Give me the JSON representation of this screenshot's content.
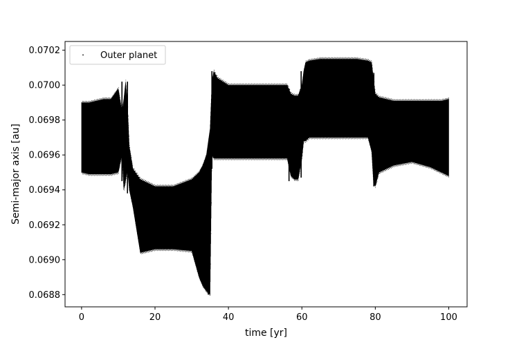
{
  "chart_data": {
    "type": "scatter",
    "title": "",
    "xlabel": "time [yr]",
    "ylabel": "Semi-major axis [au]",
    "xlim": [
      -4.5,
      105
    ],
    "ylim": [
      0.06873,
      0.07025
    ],
    "xticks": [
      0,
      20,
      40,
      60,
      80,
      100
    ],
    "xtick_labels": [
      "0",
      "20",
      "40",
      "60",
      "80",
      "100"
    ],
    "yticks": [
      0.0688,
      0.069,
      0.0692,
      0.0694,
      0.0696,
      0.0698,
      0.07,
      0.0702
    ],
    "ytick_labels": [
      "0.0688",
      "0.0690",
      "0.0692",
      "0.0694",
      "0.0696",
      "0.0698",
      "0.0700",
      "0.0702"
    ],
    "grid": false,
    "legend": {
      "position": "upper-left",
      "entries": [
        "Outer planet"
      ]
    },
    "series": [
      {
        "name": "Outer planet",
        "color": "#000000",
        "marker": "point",
        "envelope": {
          "t": [
            0,
            2,
            4,
            6,
            8,
            10,
            11,
            11.5,
            12,
            12.5,
            13,
            14,
            16,
            20,
            25,
            30,
            32,
            33,
            34,
            35,
            35.5,
            36,
            37,
            40,
            45,
            50,
            55,
            56,
            57,
            58,
            59,
            60,
            60.5,
            61,
            62,
            65,
            70,
            75,
            78,
            79,
            79.5,
            80,
            81,
            83,
            85,
            90,
            95,
            98,
            100
          ],
          "min": [
            0.0695,
            0.06949,
            0.06949,
            0.06949,
            0.06949,
            0.0695,
            0.0696,
            0.0694,
            0.06945,
            0.06952,
            0.0694,
            0.0693,
            0.06904,
            0.06906,
            0.06906,
            0.06905,
            0.0689,
            0.06885,
            0.06882,
            0.0688,
            0.0696,
            0.06958,
            0.06958,
            0.06958,
            0.06958,
            0.06958,
            0.06958,
            0.06958,
            0.06948,
            0.06946,
            0.06946,
            0.06958,
            0.06968,
            0.06968,
            0.0697,
            0.0697,
            0.0697,
            0.0697,
            0.0697,
            0.06962,
            0.06944,
            0.06942,
            0.0695,
            0.06952,
            0.06954,
            0.06956,
            0.06953,
            0.0695,
            0.06948
          ],
          "max": [
            0.0699,
            0.0699,
            0.06991,
            0.06992,
            0.06992,
            0.06998,
            0.06985,
            0.06992,
            0.07002,
            0.0699,
            0.06965,
            0.06952,
            0.06946,
            0.06942,
            0.06942,
            0.06946,
            0.0695,
            0.06954,
            0.0696,
            0.06975,
            0.07002,
            0.07008,
            0.07004,
            0.07,
            0.07,
            0.07,
            0.07,
            0.07,
            0.06995,
            0.06994,
            0.06994,
            0.07,
            0.07008,
            0.07013,
            0.07014,
            0.07015,
            0.07015,
            0.07015,
            0.07014,
            0.07013,
            0.07004,
            0.06995,
            0.06993,
            0.06992,
            0.06991,
            0.06991,
            0.06991,
            0.06991,
            0.06992
          ],
          "spikes": [
            {
              "t": 11.0,
              "y0": 0.06945,
              "y1": 0.07002
            },
            {
              "t": 12.5,
              "y0": 0.06938,
              "y1": 0.07002
            },
            {
              "t": 34.5,
              "y0": 0.0688,
              "y1": 0.06905
            },
            {
              "t": 35.5,
              "y0": 0.06952,
              "y1": 0.07008
            },
            {
              "t": 56.5,
              "y0": 0.06945,
              "y1": 0.06998
            },
            {
              "t": 59.8,
              "y0": 0.06947,
              "y1": 0.07008
            },
            {
              "t": 79.6,
              "y0": 0.06942,
              "y1": 0.07007
            }
          ]
        }
      }
    ]
  }
}
